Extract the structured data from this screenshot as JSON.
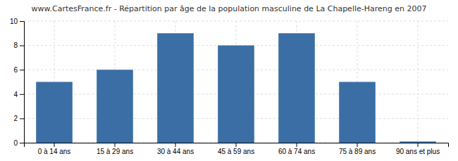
{
  "chart_data": {
    "type": "bar",
    "title": "www.CartesFrance.fr - Répartition par âge de la population masculine de La Chapelle-Hareng en 2007",
    "categories": [
      "0 à 14 ans",
      "15 à 29 ans",
      "30 à 44 ans",
      "45 à 59 ans",
      "60 à 74 ans",
      "75 à 89 ans",
      "90 ans et plus"
    ],
    "values": [
      5,
      6,
      9,
      8,
      9,
      5,
      0.1
    ],
    "color": "#3a6ea5",
    "ylim": [
      0,
      10
    ],
    "yticks": [
      0,
      2,
      4,
      6,
      8,
      10
    ],
    "grid": true
  }
}
